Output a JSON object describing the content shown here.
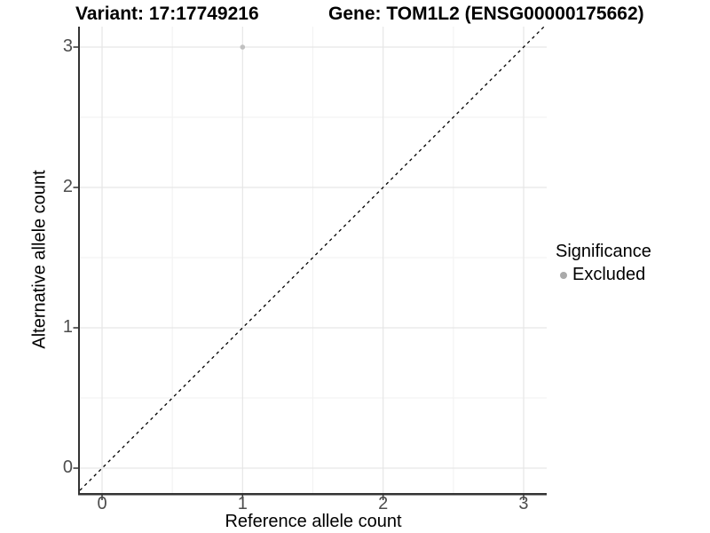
{
  "header": {
    "variant_title": "Variant: 17:17749216",
    "gene_title": "Gene: TOM1L2 (ENSG00000175662)"
  },
  "chart_data": {
    "type": "scatter",
    "title": "Variant: 17:17749216 — Gene: TOM1L2 (ENSG00000175662)",
    "xlabel": "Reference allele count",
    "ylabel": "Alternative allele count",
    "xlim": [
      -0.16,
      3.16
    ],
    "ylim": [
      -0.16,
      3.16
    ],
    "x_ticks": [
      0,
      1,
      2,
      3
    ],
    "y_ticks": [
      0,
      1,
      2,
      3
    ],
    "x_tick_labels": [
      "0",
      "1",
      "2",
      "3"
    ],
    "y_tick_labels": [
      "0",
      "1",
      "2",
      "3"
    ],
    "minor_ticks": [
      0.5,
      1.5,
      2.5
    ],
    "grid": "major and minor, light gray on white panel",
    "series": [
      {
        "name": "Excluded",
        "color": "#c0c0c0",
        "points": [
          {
            "x": 1,
            "y": 3
          }
        ]
      }
    ],
    "reference_line": {
      "type": "identity y=x",
      "style": "dashed",
      "color": "#000000"
    },
    "legend": {
      "position": "right",
      "title": "Significance",
      "entries": [
        {
          "label": "Excluded",
          "color": "#aaaaaa"
        }
      ]
    }
  },
  "colors": {
    "axis_line": "#333333",
    "tick_label": "#4d4d4d",
    "grid_major": "#e6e6e6",
    "grid_minor": "#f2f2f2",
    "point": "#c0c0c0",
    "legend_key": "#aaaaaa"
  }
}
